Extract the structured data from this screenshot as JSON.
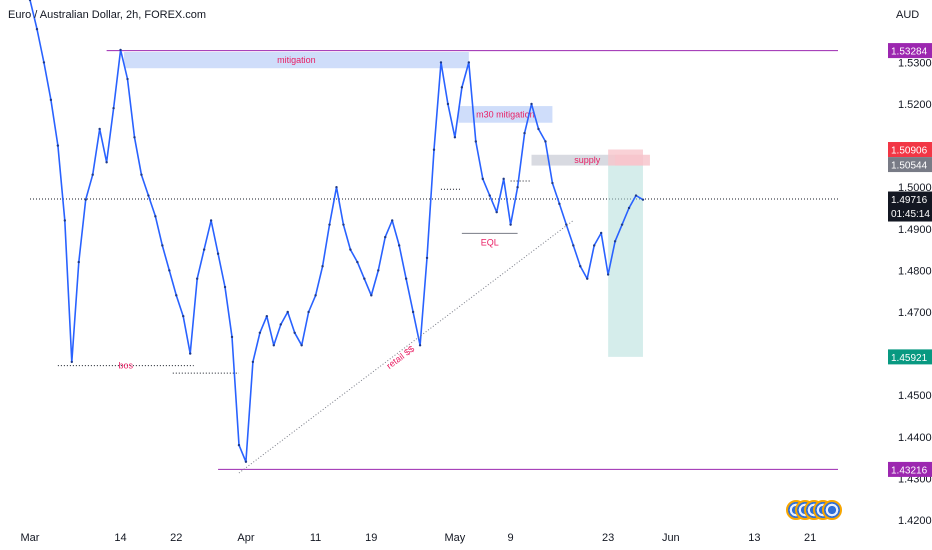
{
  "header": {
    "title": "Euro / Australian Dollar, 2h, FOREX.com",
    "currency": "AUD"
  },
  "chart_data": {
    "type": "line",
    "title": "Euro / Australian Dollar, 2h, FOREX.com",
    "symbol": "EURAUD",
    "interval": "2h",
    "ylim": [
      1.42,
      1.545
    ],
    "xlim": [
      0,
      116
    ],
    "y_ticks": [
      {
        "label": "1.53000",
        "value": 1.53
      },
      {
        "label": "1.52000",
        "value": 1.52
      },
      {
        "label": "1.51000",
        "value": 1.51
      },
      {
        "label": "1.50000",
        "value": 1.5
      },
      {
        "label": "1.49000",
        "value": 1.49
      },
      {
        "label": "1.48000",
        "value": 1.48
      },
      {
        "label": "1.47000",
        "value": 1.47
      },
      {
        "label": "1.46000",
        "value": 1.46
      },
      {
        "label": "1.45000",
        "value": 1.45
      },
      {
        "label": "1.44000",
        "value": 1.44
      },
      {
        "label": "1.43000",
        "value": 1.43
      },
      {
        "label": "1.42000",
        "value": 1.42
      }
    ],
    "x_ticks": [
      {
        "label": "Mar",
        "value": 0
      },
      {
        "label": "14",
        "value": 13
      },
      {
        "label": "22",
        "value": 21
      },
      {
        "label": "Apr",
        "value": 31
      },
      {
        "label": "11",
        "value": 41
      },
      {
        "label": "19",
        "value": 49
      },
      {
        "label": "May",
        "value": 61
      },
      {
        "label": "9",
        "value": 69
      },
      {
        "label": "23",
        "value": 83
      },
      {
        "label": "Jun",
        "value": 92
      },
      {
        "label": "13",
        "value": 104
      },
      {
        "label": "21",
        "value": 112
      }
    ],
    "price_tags": [
      {
        "label": "1.53284",
        "value": 1.53284,
        "color": "#9c27b0"
      },
      {
        "label": "1.50906",
        "value": 1.50906,
        "color": "#f23645"
      },
      {
        "label": "1.50544",
        "value": 1.50544,
        "color": "#787b86"
      },
      {
        "label": "1.49716",
        "value": 1.49716,
        "color": "#131722",
        "sub": "01:45:14"
      },
      {
        "label": "1.45921",
        "value": 1.45921,
        "color": "#089981"
      },
      {
        "label": "1.43216",
        "value": 1.43216,
        "color": "#9c27b0"
      }
    ],
    "zones": [
      {
        "label": "mitigation",
        "x0": 13.5,
        "x1": 63,
        "y0": 1.5286,
        "y1": 1.5325,
        "color": "#c7d7f9"
      },
      {
        "label": "m30 mitigation",
        "x0": 61.5,
        "x1": 75,
        "y0": 1.5155,
        "y1": 1.5195,
        "color": "#c7d7f9"
      },
      {
        "label": "supply",
        "x0": 72,
        "x1": 88,
        "y0": 1.5052,
        "y1": 1.5078,
        "color": "#d1d4dc"
      },
      {
        "label": "",
        "x0": 84,
        "x1": 89,
        "y0": 1.5052,
        "y1": 1.5078,
        "color": "#f7c5cc"
      }
    ],
    "levels": [
      {
        "label": "",
        "value": 1.53284,
        "x0": 11,
        "x1": 116,
        "color": "#9c27b0"
      },
      {
        "label": "",
        "value": 1.43216,
        "x0": 27,
        "x1": 116,
        "color": "#9c27b0"
      },
      {
        "label": "",
        "value": 1.49716,
        "x0": 0,
        "x1": 116,
        "color": "#131722",
        "dotted": true
      },
      {
        "label": "bos",
        "value": 1.4571,
        "x0": 4,
        "x1": 23.5,
        "color": "#131722",
        "dotted": true
      },
      {
        "label": "",
        "value": 1.4553,
        "x0": 20.5,
        "x1": 30,
        "color": "#131722",
        "dotted": true
      },
      {
        "label": "EQL",
        "value": 1.4889,
        "x0": 62,
        "x1": 70,
        "color": "#787b86"
      },
      {
        "label": "",
        "value": 1.4995,
        "x0": 59,
        "x1": 62,
        "color": "#131722",
        "dotted": true
      },
      {
        "label": "",
        "value": 1.5015,
        "x0": 69,
        "x1": 72,
        "color": "#131722",
        "dotted": true
      }
    ],
    "trendline": {
      "label": "retail $$",
      "x0": 30,
      "y0": 1.4313,
      "x1": 78,
      "y1": 1.492
    },
    "position": {
      "type": "short",
      "x0": 83,
      "x1": 88,
      "entry": 1.5052,
      "target": 1.45921,
      "stop": 1.50906
    },
    "series": [
      {
        "x": [
          0,
          1,
          2,
          3,
          4,
          5,
          6,
          7,
          8,
          9,
          10,
          11,
          12,
          13,
          14,
          15,
          16,
          17,
          18,
          19,
          20,
          21,
          22,
          23,
          24,
          25,
          26,
          27,
          28,
          29,
          30,
          31,
          32,
          33,
          34,
          35,
          36,
          37,
          38,
          39,
          40,
          41,
          42,
          43,
          44,
          45,
          46,
          47,
          48,
          49,
          50,
          51,
          52,
          53,
          54,
          55,
          56,
          57,
          58,
          59,
          60,
          61,
          62,
          63,
          64,
          65,
          66,
          67,
          68,
          69,
          70,
          71,
          72,
          73,
          74,
          75,
          76,
          77,
          78,
          79,
          80,
          81,
          82,
          83,
          84,
          85,
          86,
          87,
          88
        ],
        "values": [
          1.545,
          1.538,
          1.53,
          1.521,
          1.51,
          1.492,
          1.458,
          1.482,
          1.497,
          1.503,
          1.514,
          1.506,
          1.519,
          1.533,
          1.526,
          1.512,
          1.503,
          1.498,
          1.493,
          1.486,
          1.48,
          1.474,
          1.469,
          1.46,
          1.478,
          1.485,
          1.492,
          1.484,
          1.476,
          1.464,
          1.438,
          1.434,
          1.458,
          1.465,
          1.469,
          1.462,
          1.467,
          1.47,
          1.465,
          1.462,
          1.47,
          1.474,
          1.481,
          1.491,
          1.5,
          1.491,
          1.485,
          1.482,
          1.478,
          1.474,
          1.48,
          1.488,
          1.492,
          1.486,
          1.478,
          1.47,
          1.462,
          1.483,
          1.509,
          1.53,
          1.52,
          1.512,
          1.524,
          1.53,
          1.511,
          1.502,
          1.498,
          1.494,
          1.502,
          1.491,
          1.5,
          1.513,
          1.52,
          1.514,
          1.511,
          1.501,
          1.496,
          1.491,
          1.486,
          1.481,
          1.478,
          1.486,
          1.489,
          1.479,
          1.487,
          1.491,
          1.495,
          1.498,
          1.497
        ],
        "color": "#2962ff"
      }
    ],
    "grid": false,
    "legend": "none"
  }
}
